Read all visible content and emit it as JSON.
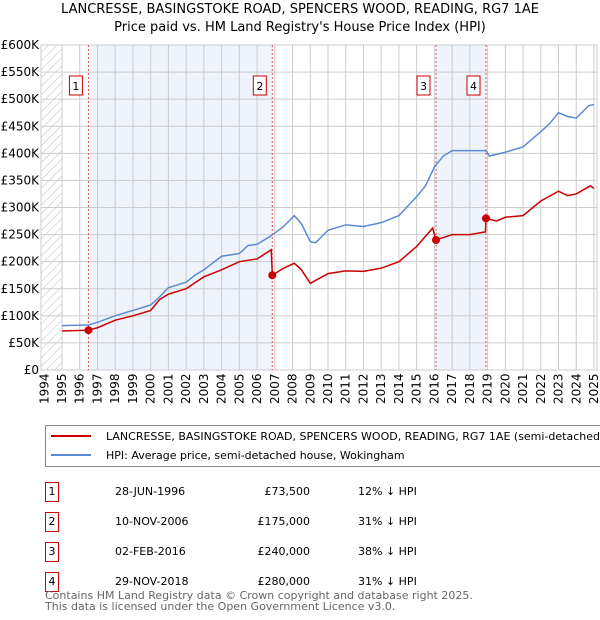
{
  "chart_data": {
    "type": "line",
    "title": "LANCRESSE, BASINGSTOKE ROAD, SPENCERS WOOD, READING, RG7 1AE",
    "subtitle": "Price paid vs. HM Land Registry's House Price Index (HPI)",
    "ylim": [
      0,
      600000
    ],
    "xlim": [
      1994,
      2025
    ],
    "yticks": [
      "£0",
      "£50K",
      "£100K",
      "£150K",
      "£200K",
      "£250K",
      "£300K",
      "£350K",
      "£400K",
      "£450K",
      "£500K",
      "£550K",
      "£600K"
    ],
    "xticks": [
      "1994",
      "1995",
      "1996",
      "1997",
      "1998",
      "1999",
      "2000",
      "2001",
      "2002",
      "2003",
      "2004",
      "2005",
      "2006",
      "2007",
      "2008",
      "2009",
      "2010",
      "2011",
      "2012",
      "2013",
      "2014",
      "2015",
      "2016",
      "2017",
      "2018",
      "2019",
      "2020",
      "2021",
      "2022",
      "2023",
      "2024",
      "2025"
    ],
    "series": [
      {
        "name": "LANCRESSE, BASINGSTOKE ROAD, SPENCERS WOOD, READING, RG7 1AE (semi-detached house)",
        "color": "#cc0000",
        "x": [
          1995,
          1996.49,
          1997,
          1998,
          1999,
          2000,
          2000.5,
          2001,
          2002,
          2003,
          2004,
          2005,
          2006,
          2006.8,
          2006.86,
          2007.5,
          2008.1,
          2008.5,
          2009,
          2010,
          2011,
          2012,
          2013,
          2014,
          2015,
          2015.9,
          2016.09,
          2017,
          2018,
          2018.88,
          2018.91,
          2019.5,
          2020,
          2021,
          2022,
          2023,
          2023.5,
          2024,
          2024.8,
          2025
        ],
        "y": [
          72000,
          73500,
          78000,
          92000,
          100000,
          110000,
          130000,
          140000,
          150000,
          172000,
          185000,
          200000,
          205000,
          222000,
          175000,
          188000,
          197000,
          185000,
          160000,
          178000,
          183000,
          182000,
          188000,
          200000,
          228000,
          262000,
          240000,
          250000,
          250000,
          255000,
          280000,
          275000,
          282000,
          285000,
          312000,
          330000,
          322000,
          325000,
          340000,
          335000
        ]
      },
      {
        "name": "HPI: Average price, semi-detached house, Wokingham",
        "color": "#5b8bd0",
        "x": [
          1995,
          1996.5,
          1997,
          1998,
          1999,
          2000,
          2000.5,
          2001,
          2002,
          2002.5,
          2003,
          2004,
          2005,
          2005.5,
          2006,
          2006.8,
          2007.5,
          2008.1,
          2008.5,
          2009,
          2009.3,
          2010,
          2011,
          2012,
          2013,
          2014,
          2015,
          2015.5,
          2016,
          2016.5,
          2017,
          2018,
          2018.9,
          2019.1,
          2020,
          2021,
          2022,
          2022.5,
          2023,
          2023.5,
          2024,
          2024.7,
          2025
        ],
        "y": [
          82000,
          83000,
          88000,
          100000,
          110000,
          120000,
          135000,
          152000,
          162000,
          175000,
          185000,
          210000,
          215000,
          230000,
          232000,
          248000,
          265000,
          285000,
          270000,
          237000,
          235000,
          258000,
          268000,
          265000,
          272000,
          285000,
          320000,
          340000,
          375000,
          395000,
          405000,
          405000,
          405000,
          395000,
          402000,
          412000,
          440000,
          455000,
          475000,
          468000,
          465000,
          488000,
          490000
        ]
      }
    ],
    "sales": [
      {
        "num": "1",
        "x": 1996.49,
        "date": "28-JUN-1996",
        "price": "£73,500",
        "value": 73500,
        "hpi": "12% ↓ HPI"
      },
      {
        "num": "2",
        "x": 2006.86,
        "date": "10-NOV-2006",
        "price": "£175,000",
        "value": 175000,
        "hpi": "31% ↓ HPI"
      },
      {
        "num": "3",
        "x": 2016.09,
        "date": "02-FEB-2016",
        "price": "£240,000",
        "value": 240000,
        "hpi": "38% ↓ HPI"
      },
      {
        "num": "4",
        "x": 2018.91,
        "date": "29-NOV-2018",
        "price": "£280,000",
        "value": 280000,
        "hpi": "31% ↓ HPI"
      }
    ],
    "legend_position": "bottom"
  },
  "footer": [
    "Contains HM Land Registry data © Crown copyright and database right 2025.",
    "This data is licensed under the Open Government Licence v3.0."
  ]
}
